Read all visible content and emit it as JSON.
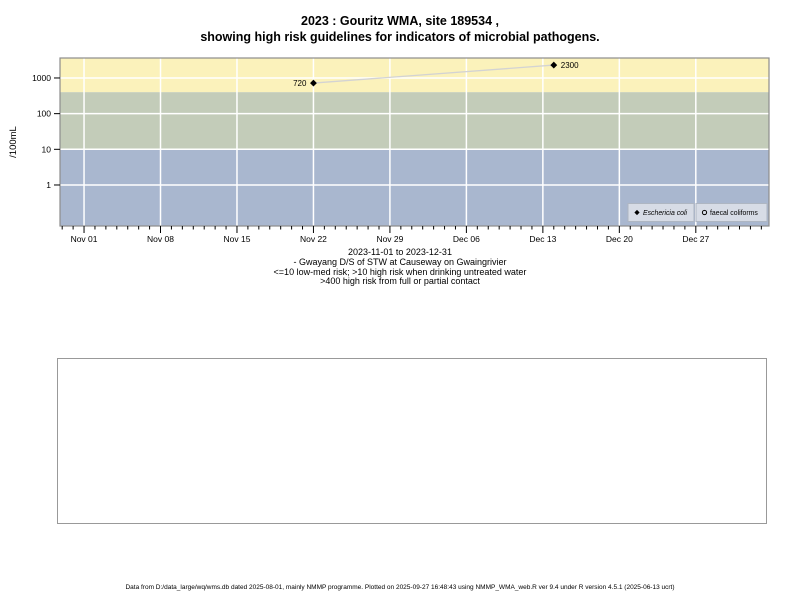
{
  "title": {
    "line1": "2023 : Gouritz WMA, site 189534 ,",
    "line2": "showing high risk guidelines for indicators of microbial pathogens."
  },
  "subtitle": {
    "line1": "2023-11-01 to 2023-12-31",
    "line2": "- Gwayang D/S of STW at Causeway on Gwaingrivier",
    "line3": "<=10 low-med risk; >10 high risk when drinking untreated water",
    "line4": ">400 high risk from full or partial contact"
  },
  "footer": {
    "text": "Data from D:/data_large/wq/wms.db dated 2025-08-01, mainly NMMP programme. Plotted on 2025-09-27 16:48:43 using NMMP_WMA_web.R ver 9.4 under R version 4.5.1 (2025-06-13 ucrt)"
  },
  "chart_data": {
    "type": "scatter",
    "ylabel": "/100mL",
    "y_scale": "log10",
    "y_ticks": [
      "1",
      "10",
      "100",
      "1000"
    ],
    "y_tick_values": [
      1,
      10,
      100,
      1000
    ],
    "ylim_log10": [
      -1.15,
      3.56
    ],
    "x_ticks": [
      {
        "label": "Nov 01",
        "day": 0
      },
      {
        "label": "Nov 08",
        "day": 7
      },
      {
        "label": "Nov 15",
        "day": 14
      },
      {
        "label": "Nov 22",
        "day": 21
      },
      {
        "label": "Nov 29",
        "day": 28
      },
      {
        "label": "Dec 06",
        "day": 35
      },
      {
        "label": "Dec 13",
        "day": 42
      },
      {
        "label": "Dec 20",
        "day": 49
      },
      {
        "label": "Dec 27",
        "day": 56
      }
    ],
    "x_domain_days": [
      -2.2,
      62.7
    ],
    "x_range_note": "days relative to 2023-11-01",
    "grid": true,
    "grid_color": "#ffffff",
    "plot_border_color": "#8c8c8c",
    "bands": [
      {
        "name": "high-risk-full-or-partial-contact",
        "from": 400,
        "to": "top",
        "color": "#fbf2bb"
      },
      {
        "name": "high-risk-drinking-untreated-water",
        "from": 10,
        "to": 400,
        "color": "#c3ccb9"
      },
      {
        "name": "low-med-risk",
        "from": "bottom",
        "to": 10,
        "color": "#a9b7cf"
      }
    ],
    "series": [
      {
        "name": "Eschericia coli",
        "symbol": "filled-diamond",
        "italic": true,
        "color": "#000000",
        "line_color": "#d3d3d3",
        "points": [
          {
            "day": 21,
            "date_label": "Nov 22",
            "value": 720,
            "label": "720",
            "label_side": "left"
          },
          {
            "day": 43,
            "date_label": "Dec 14",
            "value": 2300,
            "label": "2300",
            "label_side": "right"
          }
        ]
      },
      {
        "name": "faecal coliforms",
        "symbol": "open-circle",
        "italic": false,
        "color": "#000000",
        "line_color": "#d3d3d3",
        "points": []
      }
    ],
    "legend": {
      "position": "bottom-right-inside",
      "box_fill": "#d7dce6",
      "box_stroke": "#aeb6c2"
    }
  }
}
